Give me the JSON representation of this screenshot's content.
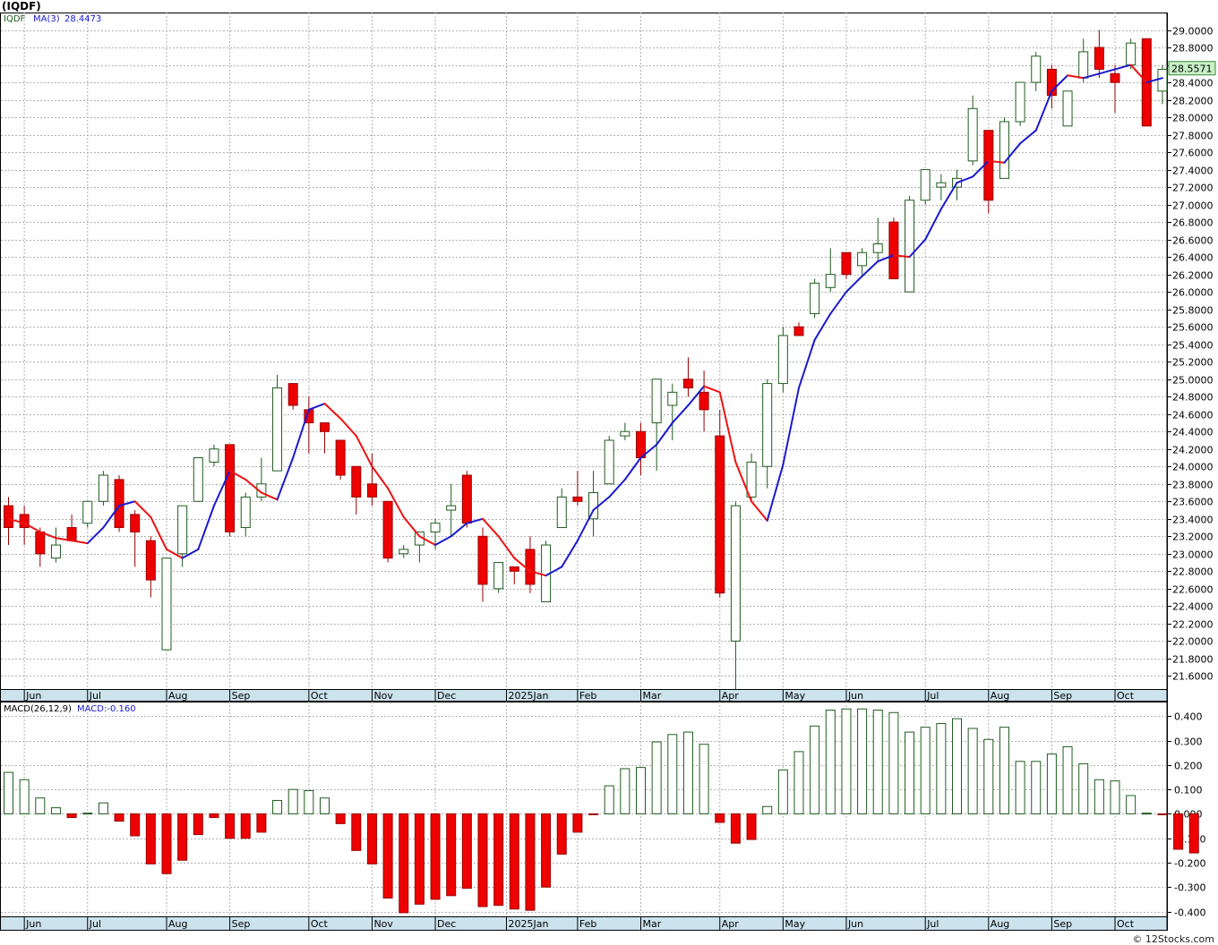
{
  "title": "(IQDF)",
  "watermark": "© 12Stocks.com",
  "colors": {
    "up_body": "#ffffff",
    "up_stroke": "#1f5c1f",
    "down_body": "#ee0000",
    "down_stroke": "#990000",
    "ma_up": "#1a1acc",
    "ma_down": "#ee1111",
    "grid": "#b0b0b0",
    "axis_bg": "#cce3ee",
    "last_bg": "#c8f0c8"
  },
  "chart_data": [
    {
      "type": "candlestick",
      "name": "price-panel",
      "legend": {
        "symbol": "IQDF",
        "ma_label": "MA(3)",
        "ma_value": "28.4473"
      },
      "last_value_label": "28.5571",
      "ylim": [
        21.45,
        29.2
      ],
      "y_ticks": [
        "29.0000",
        "28.8000",
        "28.6000",
        "28.4000",
        "28.2000",
        "28.0000",
        "27.8000",
        "27.6000",
        "27.4000",
        "27.2000",
        "27.0000",
        "26.8000",
        "26.6000",
        "26.4000",
        "26.2000",
        "26.0000",
        "25.8000",
        "25.6000",
        "25.4000",
        "25.2000",
        "25.0000",
        "24.8000",
        "24.6000",
        "24.4000",
        "24.2000",
        "24.0000",
        "23.8000",
        "23.6000",
        "23.4000",
        "23.2000",
        "23.0000",
        "22.8000",
        "22.6000",
        "22.4000",
        "22.2000",
        "22.0000",
        "21.8000",
        "21.6000"
      ],
      "months": [
        {
          "label": "Jun",
          "bar": 1
        },
        {
          "label": "Jul",
          "bar": 5
        },
        {
          "label": "Aug",
          "bar": 10
        },
        {
          "label": "Sep",
          "bar": 14
        },
        {
          "label": "Oct",
          "bar": 19
        },
        {
          "label": "Nov",
          "bar": 23
        },
        {
          "label": "Dec",
          "bar": 27
        },
        {
          "label": "2025Jan",
          "bar": 31.5
        },
        {
          "label": "Feb",
          "bar": 36
        },
        {
          "label": "Mar",
          "bar": 40
        },
        {
          "label": "Apr",
          "bar": 45
        },
        {
          "label": "May",
          "bar": 49
        },
        {
          "label": "Jun",
          "bar": 53
        },
        {
          "label": "Jul",
          "bar": 58
        },
        {
          "label": "Aug",
          "bar": 62
        },
        {
          "label": "Sep",
          "bar": 66
        },
        {
          "label": "Oct",
          "bar": 70
        }
      ],
      "candles": [
        {
          "o": 23.55,
          "h": 23.65,
          "l": 23.1,
          "c": 23.3
        },
        {
          "o": 23.45,
          "h": 23.55,
          "l": 23.1,
          "c": 23.3
        },
        {
          "o": 23.25,
          "h": 23.3,
          "l": 22.85,
          "c": 23.0
        },
        {
          "o": 22.95,
          "h": 23.3,
          "l": 22.9,
          "c": 23.1
        },
        {
          "o": 23.3,
          "h": 23.45,
          "l": 23.15,
          "c": 23.15
        },
        {
          "o": 23.35,
          "h": 23.6,
          "l": 23.3,
          "c": 23.6
        },
        {
          "o": 23.6,
          "h": 23.95,
          "l": 23.55,
          "c": 23.9
        },
        {
          "o": 23.85,
          "h": 23.9,
          "l": 23.25,
          "c": 23.3
        },
        {
          "o": 23.45,
          "h": 23.5,
          "l": 22.85,
          "c": 23.25
        },
        {
          "o": 23.15,
          "h": 23.2,
          "l": 22.5,
          "c": 22.7
        },
        {
          "o": 21.9,
          "h": 22.95,
          "l": 21.9,
          "c": 22.95
        },
        {
          "o": 23.0,
          "h": 23.55,
          "l": 22.85,
          "c": 23.55
        },
        {
          "o": 23.6,
          "h": 24.1,
          "l": 23.6,
          "c": 24.1
        },
        {
          "o": 24.05,
          "h": 24.25,
          "l": 24.0,
          "c": 24.2
        },
        {
          "o": 24.25,
          "h": 24.25,
          "l": 23.2,
          "c": 23.25
        },
        {
          "o": 23.3,
          "h": 23.7,
          "l": 23.2,
          "c": 23.65
        },
        {
          "o": 23.65,
          "h": 24.1,
          "l": 23.6,
          "c": 23.8
        },
        {
          "o": 23.95,
          "h": 25.05,
          "l": 23.95,
          "c": 24.9
        },
        {
          "o": 24.95,
          "h": 24.95,
          "l": 24.65,
          "c": 24.7
        },
        {
          "o": 24.65,
          "h": 24.8,
          "l": 24.15,
          "c": 24.5
        },
        {
          "o": 24.5,
          "h": 24.5,
          "l": 24.15,
          "c": 24.4
        },
        {
          "o": 24.3,
          "h": 24.3,
          "l": 23.85,
          "c": 23.9
        },
        {
          "o": 24.0,
          "h": 24.0,
          "l": 23.45,
          "c": 23.65
        },
        {
          "o": 23.8,
          "h": 24.15,
          "l": 23.55,
          "c": 23.65
        },
        {
          "o": 23.6,
          "h": 23.6,
          "l": 22.9,
          "c": 22.95
        },
        {
          "o": 23.0,
          "h": 23.1,
          "l": 22.95,
          "c": 23.05
        },
        {
          "o": 23.1,
          "h": 23.2,
          "l": 22.9,
          "c": 23.25
        },
        {
          "o": 23.25,
          "h": 23.4,
          "l": 23.05,
          "c": 23.35
        },
        {
          "o": 23.5,
          "h": 23.8,
          "l": 23.2,
          "c": 23.55
        },
        {
          "o": 23.9,
          "h": 23.95,
          "l": 23.3,
          "c": 23.35
        },
        {
          "o": 23.2,
          "h": 23.3,
          "l": 22.45,
          "c": 22.65
        },
        {
          "o": 22.6,
          "h": 22.9,
          "l": 22.55,
          "c": 22.9
        },
        {
          "o": 22.85,
          "h": 22.85,
          "l": 22.65,
          "c": 22.8
        },
        {
          "o": 23.05,
          "h": 23.2,
          "l": 22.55,
          "c": 22.65
        },
        {
          "o": 22.45,
          "h": 23.15,
          "l": 22.45,
          "c": 23.1
        },
        {
          "o": 23.3,
          "h": 23.75,
          "l": 23.3,
          "c": 23.65
        },
        {
          "o": 23.65,
          "h": 23.95,
          "l": 23.55,
          "c": 23.6
        },
        {
          "o": 23.4,
          "h": 23.95,
          "l": 23.2,
          "c": 23.7
        },
        {
          "o": 23.8,
          "h": 24.35,
          "l": 23.8,
          "c": 24.3
        },
        {
          "o": 24.35,
          "h": 24.5,
          "l": 24.3,
          "c": 24.4
        },
        {
          "o": 24.4,
          "h": 24.5,
          "l": 23.9,
          "c": 24.1
        },
        {
          "o": 24.5,
          "h": 25.0,
          "l": 23.95,
          "c": 25.0
        },
        {
          "o": 24.7,
          "h": 24.95,
          "l": 24.3,
          "c": 24.85
        },
        {
          "o": 25.0,
          "h": 25.25,
          "l": 24.8,
          "c": 24.9
        },
        {
          "o": 24.85,
          "h": 25.1,
          "l": 24.4,
          "c": 24.65
        },
        {
          "o": 24.35,
          "h": 24.65,
          "l": 22.5,
          "c": 22.55
        },
        {
          "o": 22.0,
          "h": 23.6,
          "l": 21.45,
          "c": 23.55
        },
        {
          "o": 23.65,
          "h": 24.15,
          "l": 23.6,
          "c": 24.05
        },
        {
          "o": 24.0,
          "h": 25.0,
          "l": 23.75,
          "c": 24.95
        },
        {
          "o": 24.95,
          "h": 25.6,
          "l": 24.85,
          "c": 25.5
        },
        {
          "o": 25.6,
          "h": 25.65,
          "l": 25.5,
          "c": 25.5
        },
        {
          "o": 25.75,
          "h": 26.15,
          "l": 25.7,
          "c": 26.1
        },
        {
          "o": 26.05,
          "h": 26.5,
          "l": 26.0,
          "c": 26.2
        },
        {
          "o": 26.45,
          "h": 26.45,
          "l": 26.15,
          "c": 26.2
        },
        {
          "o": 26.3,
          "h": 26.5,
          "l": 26.2,
          "c": 26.45
        },
        {
          "o": 26.45,
          "h": 26.85,
          "l": 26.35,
          "c": 26.55
        },
        {
          "o": 26.8,
          "h": 26.85,
          "l": 26.15,
          "c": 26.15
        },
        {
          "o": 26.0,
          "h": 27.1,
          "l": 26.0,
          "c": 27.05
        },
        {
          "o": 27.05,
          "h": 27.4,
          "l": 27.0,
          "c": 27.4
        },
        {
          "o": 27.2,
          "h": 27.35,
          "l": 27.05,
          "c": 27.25
        },
        {
          "o": 27.2,
          "h": 27.4,
          "l": 27.05,
          "c": 27.3
        },
        {
          "o": 27.5,
          "h": 28.25,
          "l": 27.45,
          "c": 28.1
        },
        {
          "o": 27.85,
          "h": 27.85,
          "l": 26.9,
          "c": 27.05
        },
        {
          "o": 27.3,
          "h": 28.0,
          "l": 27.3,
          "c": 27.95
        },
        {
          "o": 27.95,
          "h": 28.4,
          "l": 27.9,
          "c": 28.4
        },
        {
          "o": 28.4,
          "h": 28.75,
          "l": 28.3,
          "c": 28.7
        },
        {
          "o": 28.55,
          "h": 28.6,
          "l": 28.1,
          "c": 28.25
        },
        {
          "o": 27.9,
          "h": 28.3,
          "l": 27.9,
          "c": 28.3
        },
        {
          "o": 28.45,
          "h": 28.9,
          "l": 28.4,
          "c": 28.75
        },
        {
          "o": 28.8,
          "h": 29.0,
          "l": 28.45,
          "c": 28.55
        },
        {
          "o": 28.5,
          "h": 28.6,
          "l": 28.05,
          "c": 28.4
        },
        {
          "o": 28.6,
          "h": 28.9,
          "l": 28.55,
          "c": 28.85
        },
        {
          "o": 28.9,
          "h": 28.9,
          "l": 27.9,
          "c": 27.9
        },
        {
          "o": 28.3,
          "h": 28.6,
          "l": 28.15,
          "c": 28.55
        }
      ],
      "ma3": [
        23.4,
        23.35,
        23.25,
        23.18,
        23.15,
        23.12,
        23.3,
        23.55,
        23.6,
        23.42,
        23.05,
        22.95,
        23.05,
        23.55,
        23.95,
        23.85,
        23.7,
        23.62,
        24.1,
        24.65,
        24.72,
        24.55,
        24.35,
        24.0,
        23.75,
        23.42,
        23.2,
        23.1,
        23.2,
        23.35,
        23.4,
        23.2,
        22.95,
        22.8,
        22.75,
        22.85,
        23.15,
        23.5,
        23.65,
        23.85,
        24.1,
        24.25,
        24.5,
        24.7,
        24.92,
        24.85,
        24.05,
        23.6,
        23.38,
        24.02,
        24.9,
        25.45,
        25.75,
        26.0,
        26.18,
        26.35,
        26.42,
        26.4,
        26.6,
        26.95,
        27.25,
        27.32,
        27.5,
        27.48,
        27.7,
        27.85,
        28.3,
        28.48,
        28.45,
        28.5,
        28.55,
        28.6,
        28.4,
        28.45
      ]
    },
    {
      "type": "bar",
      "name": "macd-histogram",
      "legend": {
        "label": "MACD(26,12,9)",
        "value_label": "MACD:-0.160"
      },
      "ylim": [
        -0.42,
        0.46
      ],
      "y_ticks": [
        "0.400",
        "0.300",
        "0.200",
        "0.100",
        "0.000",
        "-0.100",
        "-0.200",
        "-0.300",
        "-0.400"
      ],
      "values": [
        0.17,
        0.14,
        0.065,
        0.025,
        -0.015,
        0.003,
        0.045,
        -0.03,
        -0.09,
        -0.205,
        -0.245,
        -0.19,
        -0.085,
        -0.015,
        -0.1,
        -0.1,
        -0.075,
        0.055,
        0.1,
        0.095,
        0.065,
        -0.04,
        -0.15,
        -0.205,
        -0.345,
        -0.405,
        -0.37,
        -0.35,
        -0.335,
        -0.305,
        -0.38,
        -0.375,
        -0.39,
        -0.395,
        -0.3,
        -0.165,
        -0.075,
        -0.003,
        0.115,
        0.185,
        0.19,
        0.295,
        0.325,
        0.335,
        0.285,
        -0.035,
        -0.12,
        -0.105,
        0.03,
        0.18,
        0.255,
        0.36,
        0.425,
        0.43,
        0.43,
        0.425,
        0.415,
        0.335,
        0.355,
        0.37,
        0.39,
        0.35,
        0.305,
        0.355,
        0.215,
        0.215,
        0.245,
        0.275,
        0.205,
        0.14,
        0.135,
        0.075,
        0.003,
        -0.003,
        -0.145,
        -0.16
      ]
    }
  ]
}
